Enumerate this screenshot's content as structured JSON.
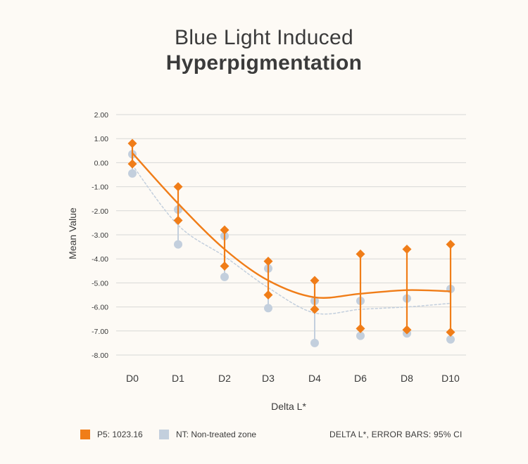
{
  "chart_data": {
    "type": "line",
    "title_line1": "Blue Light Induced",
    "title_line2": "Hyperpigmentation",
    "xlabel": "Delta L*",
    "ylabel": "Mean Value",
    "categories": [
      "D0",
      "D1",
      "D2",
      "D3",
      "D4",
      "D6",
      "D8",
      "D10"
    ],
    "ylim": [
      -8,
      2
    ],
    "yticks": [
      2,
      1,
      0,
      -1,
      -2,
      -3,
      -4,
      -5,
      -6,
      -7,
      -8
    ],
    "ytick_labels": [
      "2.00",
      "1.00",
      "0.00",
      "-1.00",
      "-2.00",
      "-3.00",
      "-4.00",
      "-5.00",
      "-6.00",
      "-7.00",
      "-8.00"
    ],
    "series": [
      {
        "name": "P5: 1023.16",
        "color": "#f07d18",
        "marker": "diamond",
        "values": [
          0.4,
          -1.7,
          -3.6,
          -4.9,
          -5.6,
          -5.45,
          -5.3,
          -5.35
        ],
        "error_low": [
          -0.05,
          -2.4,
          -4.3,
          -5.5,
          -6.1,
          -6.9,
          -6.95,
          -7.05
        ],
        "error_high": [
          0.8,
          -1.0,
          -2.8,
          -4.1,
          -4.9,
          -3.8,
          -3.6,
          -3.4
        ]
      },
      {
        "name": "NT: Non-treated zone",
        "color": "#c3cfdd",
        "marker": "circle",
        "values": [
          -0.1,
          -2.6,
          -3.9,
          -5.2,
          -6.25,
          -6.1,
          -6.0,
          -5.85
        ],
        "error_low": [
          -0.45,
          -3.4,
          -4.75,
          -6.05,
          -7.5,
          -7.2,
          -7.1,
          -7.35
        ],
        "error_high": [
          0.35,
          -1.95,
          -3.05,
          -4.4,
          -5.75,
          -5.75,
          -5.65,
          -5.25
        ]
      }
    ],
    "footnote": "DELTA L*, ERROR BARS: 95% CI"
  }
}
